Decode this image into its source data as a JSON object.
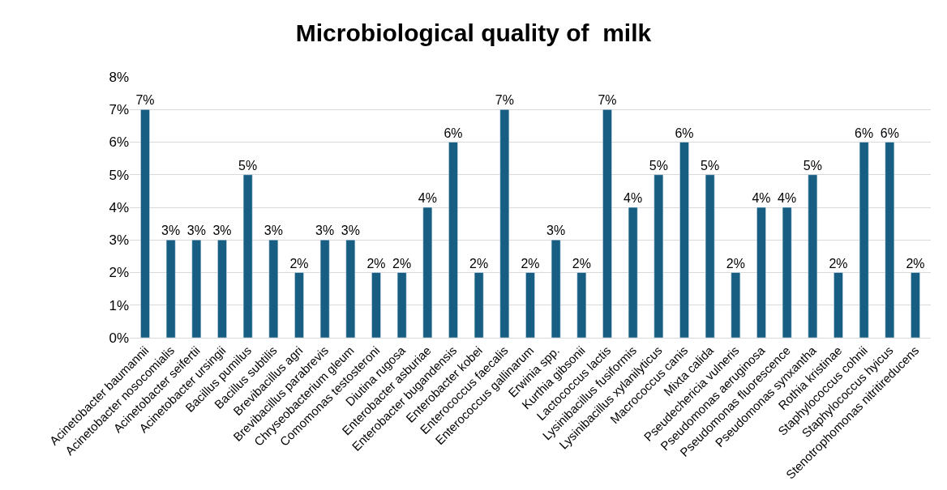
{
  "chart_data": {
    "type": "bar",
    "title": "Microbiological quality of  milk",
    "categories": [
      "Acinetobacter baumannii",
      "Acinetobacter nosocomialis",
      "Acinetobacter seifertii",
      "Acinetobacter ursingii",
      "Bacillus pumilus",
      "Bacillus subtilis",
      "Brevibacillus agri",
      "Brevibacillus parabrevis",
      "Chryseobacterium gleum",
      "Comomonas testosteroni",
      "Diutina rugosa",
      "Enterobacter asburiae",
      "Enterobacter bugandensis",
      "Enterobacter kobei",
      "Enterococcus faecalis",
      "Enterococcus gallinarum",
      "Erwinia spp.",
      "Kurthia gibsonii",
      "Lactococcus lactis",
      "Lysinibacillus fusiformis",
      "Lysinibacillus xylanilyticus",
      "Macrococcus canis",
      "Mixta calida",
      "Pseudechericia vulneris",
      "Pseudomonas aeruginosa",
      "Pseudomonas fluorescence",
      "Pseudomonas synxantha",
      "Rothia kristinae",
      "Staphylococcus cohnii",
      "Staphylococcus hyicus",
      "Stenotrophomonas nitritireducens"
    ],
    "values": [
      7,
      3,
      3,
      3,
      5,
      3,
      2,
      3,
      3,
      2,
      2,
      4,
      6,
      2,
      7,
      2,
      3,
      2,
      7,
      4,
      5,
      6,
      5,
      2,
      4,
      4,
      5,
      2,
      6,
      6,
      2
    ],
    "value_labels": [
      "7%",
      "3%",
      "3%",
      "3%",
      "5%",
      "3%",
      "2%",
      "3%",
      "3%",
      "2%",
      "2%",
      "4%",
      "6%",
      "2%",
      "7%",
      "2%",
      "3%",
      "2%",
      "7%",
      "4%",
      "5%",
      "6%",
      "5%",
      "2%",
      "4%",
      "4%",
      "5%",
      "2%",
      "6%",
      "6%",
      "2%"
    ],
    "color": "#175e82",
    "ylim": [
      0,
      8
    ],
    "yticks": [
      {
        "value": 0,
        "label": "0%"
      },
      {
        "value": 1,
        "label": "1%"
      },
      {
        "value": 2,
        "label": "2%"
      },
      {
        "value": 3,
        "label": "3%"
      },
      {
        "value": 4,
        "label": "4%"
      },
      {
        "value": 5,
        "label": "5%"
      },
      {
        "value": 6,
        "label": "6%"
      },
      {
        "value": 7,
        "label": "7%"
      },
      {
        "value": 8,
        "label": "8%"
      }
    ],
    "grid": "y",
    "legend": false
  }
}
